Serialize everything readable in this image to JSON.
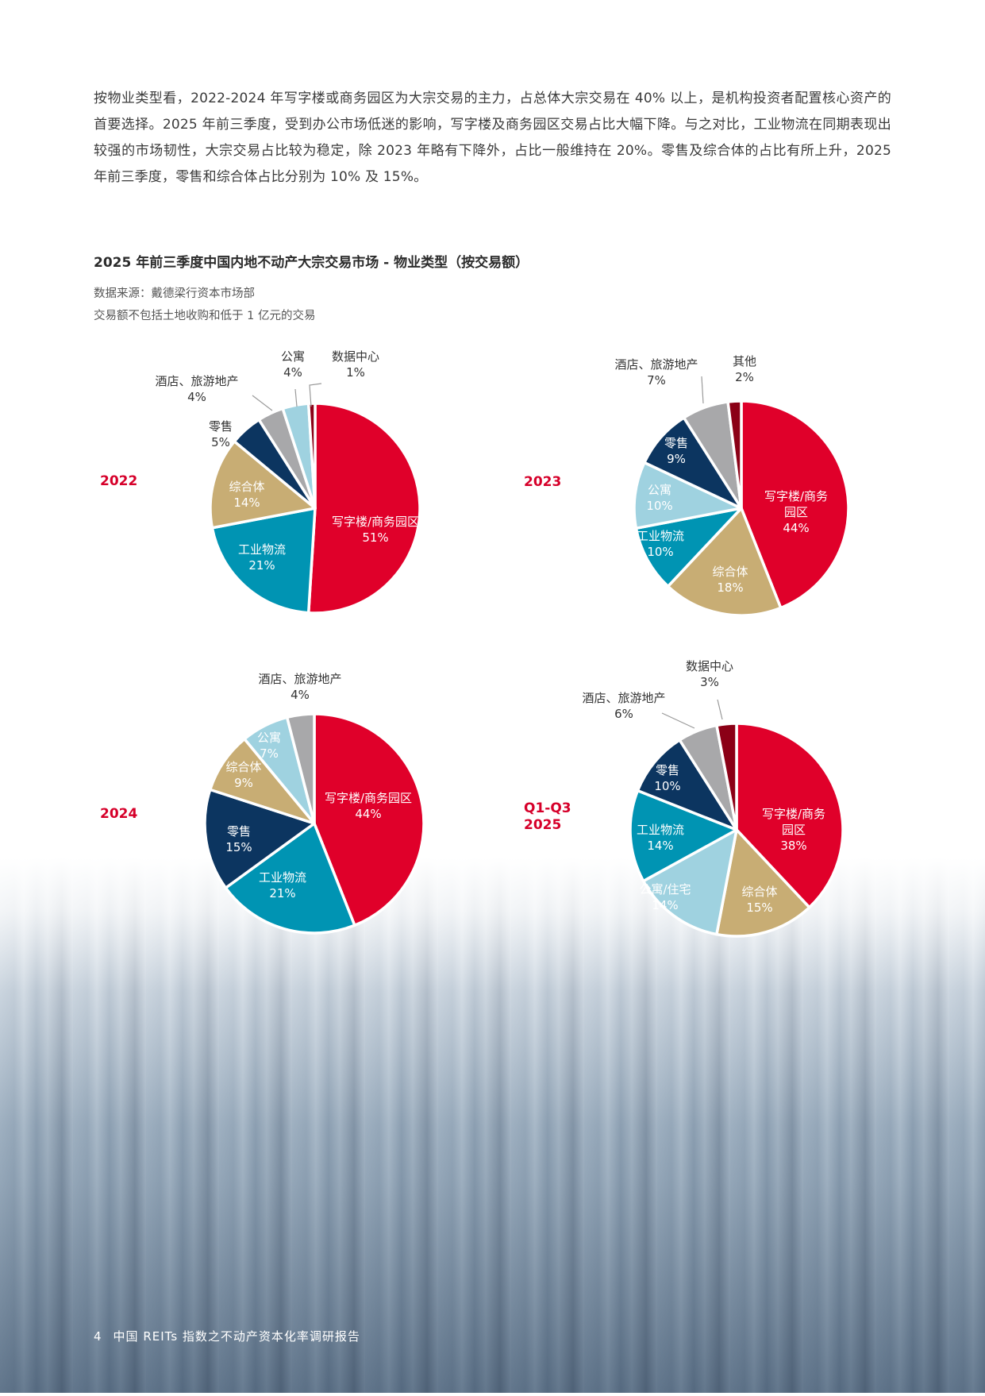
{
  "body_text": "按物业类型看，2022-2024 年写字楼或商务园区为大宗交易的主力，占总体大宗交易在 40% 以上，是机构投资者配置核心资产的首要选择。2025 年前三季度，受到办公市场低迷的影响，写字楼及商务园区交易占比大幅下降。与之对比，工业物流在同期表现出较强的市场韧性，大宗交易占比较为稳定，除 2023 年略有下降外，占比一般维持在 20%。零售及综合体的占比有所上升，2025 年前三季度，零售和综合体占比分别为 10% 及 15%。",
  "chart_section": {
    "title": "2025 年前三季度中国内地不动产大宗交易市场 -  物业类型（按交易额）",
    "source": "数据来源：戴德梁行资本市场部",
    "note": "交易额不包括土地收购和低于 1 亿元的交易"
  },
  "colors": {
    "office": "#e0002a",
    "industrial": "#0094b3",
    "composite": "#c8ad74",
    "retail": "#0c3560",
    "hotel": "#a8a8aa",
    "apartment": "#9fd2e0",
    "datacenter": "#8b0016",
    "other": "#8b0016",
    "year_label": "#d6002a"
  },
  "chart_data": [
    {
      "type": "pie",
      "title": "2022",
      "start_angle": "12 o'clock, clockwise",
      "slices": [
        {
          "key": "office",
          "label": "写字楼/商务园区",
          "value": 51,
          "pct": "51%"
        },
        {
          "key": "industrial",
          "label": "工业物流",
          "value": 21,
          "pct": "21%"
        },
        {
          "key": "composite",
          "label": "综合体",
          "value": 14,
          "pct": "14%"
        },
        {
          "key": "retail",
          "label": "零售",
          "value": 5,
          "pct": "5%"
        },
        {
          "key": "hotel",
          "label": "酒店、旅游地产",
          "value": 4,
          "pct": "4%"
        },
        {
          "key": "apartment",
          "label": "公寓",
          "value": 4,
          "pct": "4%"
        },
        {
          "key": "datacenter",
          "label": "数据中心",
          "value": 1,
          "pct": "1%"
        }
      ]
    },
    {
      "type": "pie",
      "title": "2023",
      "start_angle": "12 o'clock, clockwise",
      "slices": [
        {
          "key": "office",
          "label": "写字楼/商务园区",
          "value": 44,
          "pct": "44%"
        },
        {
          "key": "composite",
          "label": "综合体",
          "value": 18,
          "pct": "18%"
        },
        {
          "key": "industrial",
          "label": "工业物流",
          "value": 10,
          "pct": "10%"
        },
        {
          "key": "apartment",
          "label": "公寓",
          "value": 10,
          "pct": "10%"
        },
        {
          "key": "retail",
          "label": "零售",
          "value": 9,
          "pct": "9%"
        },
        {
          "key": "hotel",
          "label": "酒店、旅游地产",
          "value": 7,
          "pct": "7%"
        },
        {
          "key": "other",
          "label": "其他",
          "value": 2,
          "pct": "2%"
        }
      ]
    },
    {
      "type": "pie",
      "title": "2024",
      "start_angle": "12 o'clock, clockwise",
      "slices": [
        {
          "key": "office",
          "label": "写字楼/商务园区",
          "value": 44,
          "pct": "44%"
        },
        {
          "key": "industrial",
          "label": "工业物流",
          "value": 21,
          "pct": "21%"
        },
        {
          "key": "retail",
          "label": "零售",
          "value": 15,
          "pct": "15%"
        },
        {
          "key": "composite",
          "label": "综合体",
          "value": 9,
          "pct": "9%"
        },
        {
          "key": "apartment",
          "label": "公寓",
          "value": 7,
          "pct": "7%"
        },
        {
          "key": "hotel",
          "label": "酒店、旅游地产",
          "value": 4,
          "pct": "4%"
        }
      ]
    },
    {
      "type": "pie",
      "title": "Q1-Q3 2025",
      "start_angle": "12 o'clock, clockwise",
      "slices": [
        {
          "key": "office",
          "label": "写字楼/商务园区",
          "value": 38,
          "pct": "38%"
        },
        {
          "key": "composite",
          "label": "综合体",
          "value": 15,
          "pct": "15%"
        },
        {
          "key": "apartment",
          "label": "公寓/住宅",
          "value": 14,
          "pct": "14%"
        },
        {
          "key": "industrial",
          "label": "工业物流",
          "value": 14,
          "pct": "14%"
        },
        {
          "key": "retail",
          "label": "零售",
          "value": 10,
          "pct": "10%"
        },
        {
          "key": "hotel",
          "label": "酒店、旅游地产",
          "value": 6,
          "pct": "6%"
        },
        {
          "key": "datacenter",
          "label": "数据中心",
          "value": 3,
          "pct": "3%"
        }
      ]
    }
  ],
  "year_labels": [
    "2022",
    "2023",
    "2024",
    "Q1-Q3",
    "2025"
  ],
  "footer": {
    "page_number": "4",
    "title": "中国 REITs 指数之不动产资本化率调研报告"
  }
}
